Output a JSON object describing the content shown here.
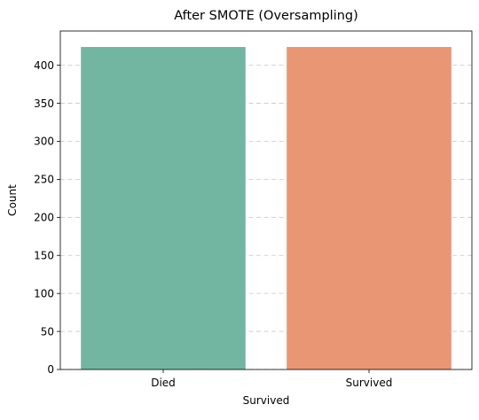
{
  "chart_data": {
    "type": "bar",
    "title": "After SMOTE (Oversampling)",
    "xlabel": "Survived",
    "ylabel": "Count",
    "categories": [
      "Died",
      "Survived"
    ],
    "values": [
      424,
      424
    ],
    "colors": [
      "#72b5a0",
      "#e99674"
    ],
    "ylim": [
      0,
      445
    ],
    "yticks": [
      0,
      50,
      100,
      150,
      200,
      250,
      300,
      350,
      400
    ],
    "grid": "y-dashed",
    "legend": "none"
  }
}
